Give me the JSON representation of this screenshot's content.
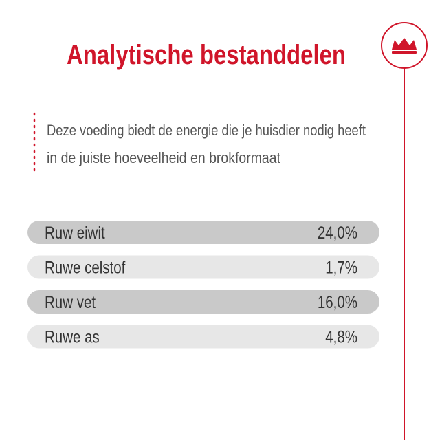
{
  "header": {
    "title": "Analytische bestanddelen"
  },
  "description": {
    "lines": [
      "Deze voeding biedt de energie die je huisdier nodig heeft",
      "in de juiste hoeveelheid en brokformaat"
    ]
  },
  "table": {
    "rows": [
      [
        "Ruw eiwit",
        "24,0%"
      ],
      [
        "Ruwe celstof",
        "1,7%"
      ],
      [
        "Ruw vet",
        "16,0%"
      ],
      [
        "Ruwe as",
        "4,8%"
      ]
    ]
  }
}
